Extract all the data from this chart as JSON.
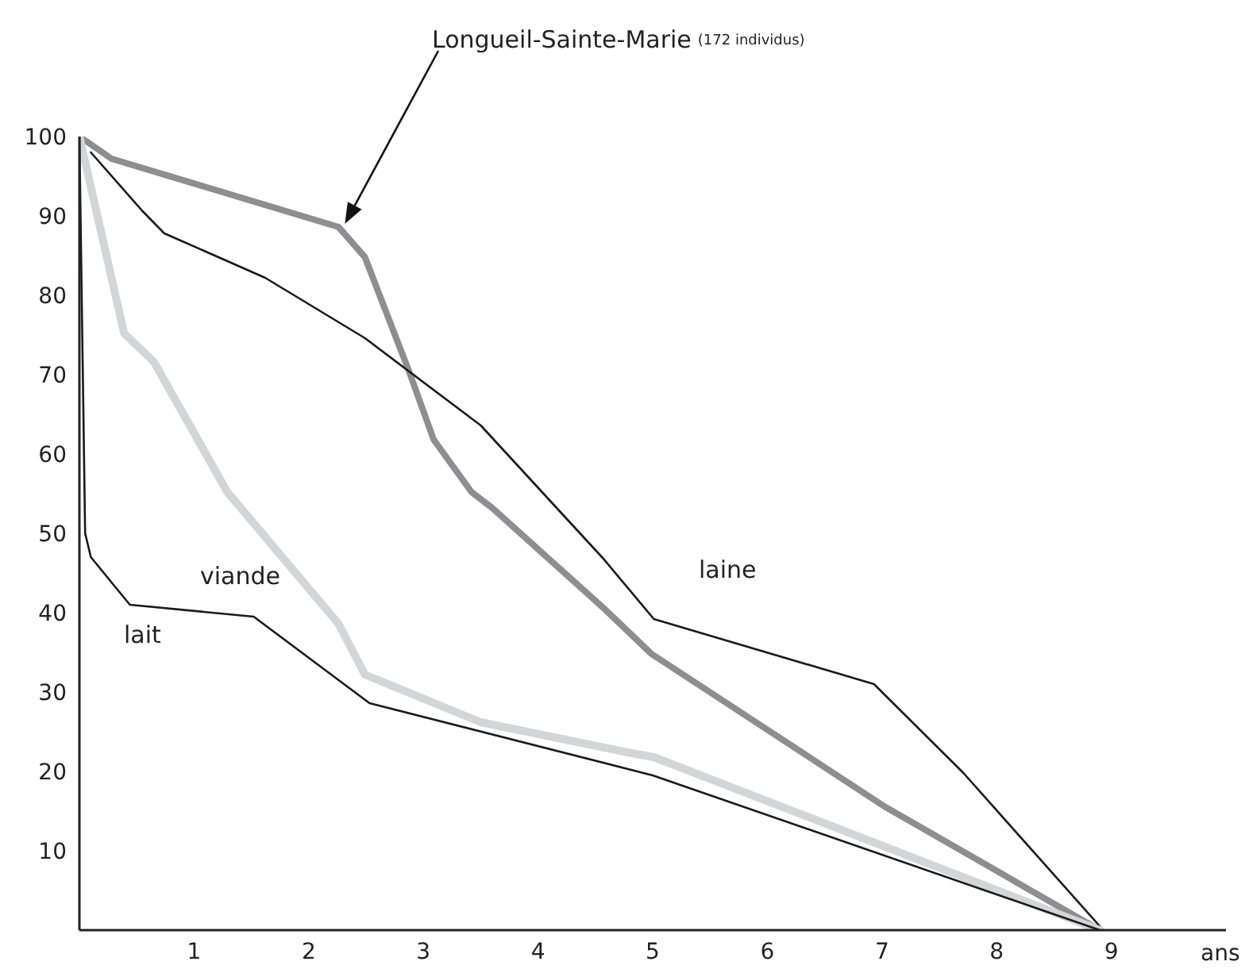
{
  "chart_data": {
    "type": "line",
    "xlabel": "ans",
    "xlim": [
      0,
      10
    ],
    "xticks": [
      1,
      2,
      3,
      4,
      5,
      6,
      7,
      8,
      9
    ],
    "ylim": [
      0,
      100
    ],
    "yticks": [
      10,
      20,
      30,
      40,
      50,
      60,
      70,
      80,
      90,
      100
    ],
    "grid": false,
    "legend": false,
    "marker": "none",
    "line_style": "solid",
    "annotations": [
      "(172 individus)"
    ],
    "series": [
      {
        "name": "Longueil-Sainte-Marie",
        "color": "#8e8e90",
        "x": [
          0,
          0.28,
          2.26,
          2.49,
          2.87,
          3.09,
          3.42,
          3.6,
          4.57,
          4.99,
          7.02,
          8.9
        ],
        "values": [
          100,
          97.2,
          88.6,
          84.8,
          70.6,
          61.8,
          55.2,
          53.2,
          40.6,
          34.8,
          15.6,
          0
        ]
      },
      {
        "name": "laine",
        "color": "#1a1a1a",
        "x": [
          0.1,
          0.55,
          0.74,
          1.62,
          2.49,
          3.5,
          4.57,
          5.01,
          6.93,
          7.71,
          8.93
        ],
        "values": [
          98,
          90.6,
          87.8,
          82.2,
          74.6,
          63.6,
          46.8,
          39.2,
          31,
          19.8,
          0
        ]
      },
      {
        "name": "viande",
        "color": "#d4d5d6",
        "x": [
          0,
          0.39,
          0.65,
          1.29,
          2.26,
          2.49,
          3.5,
          4.85,
          5.01,
          8.9
        ],
        "values": [
          100,
          75.2,
          71.6,
          55.2,
          38.6,
          32.2,
          26.2,
          22.2,
          21.8,
          0
        ]
      },
      {
        "name": "lait",
        "color": "#1a1a1a",
        "x": [
          0,
          0.05,
          0.1,
          0.44,
          1.52,
          2.53,
          5,
          8.9
        ],
        "values": [
          100,
          50,
          47,
          41,
          39.5,
          28.6,
          19.5,
          0
        ]
      }
    ]
  }
}
